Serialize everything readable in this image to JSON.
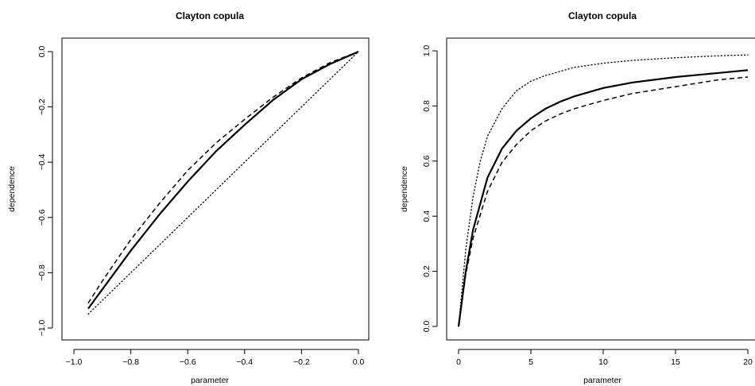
{
  "chart_data": [
    {
      "type": "line",
      "title": "Clayton copula",
      "xlabel": "parameter",
      "ylabel": "dependence",
      "xlim": [
        -1.0,
        0.0
      ],
      "ylim": [
        -1.0,
        0.0
      ],
      "xticks": [
        -1.0,
        -0.8,
        -0.6,
        -0.4,
        -0.2,
        0.0
      ],
      "xtick_labels": [
        "−1.0",
        "−0.8",
        "−0.6",
        "−0.4",
        "−0.2",
        "0.0"
      ],
      "yticks": [
        -1.0,
        -0.8,
        -0.6,
        -0.4,
        -0.2,
        0.0
      ],
      "ytick_labels": [
        "−1.0",
        "−0.8",
        "−0.6",
        "−0.4",
        "−0.2",
        "0.0"
      ],
      "series": [
        {
          "style": "solid",
          "x": [
            -0.95,
            -0.9,
            -0.8,
            -0.7,
            -0.6,
            -0.5,
            -0.4,
            -0.3,
            -0.2,
            -0.1,
            0.0
          ],
          "y": [
            -0.93,
            -0.86,
            -0.72,
            -0.59,
            -0.47,
            -0.36,
            -0.265,
            -0.175,
            -0.1,
            -0.045,
            0.0
          ]
        },
        {
          "style": "dashed",
          "x": [
            -0.95,
            -0.9,
            -0.8,
            -0.7,
            -0.6,
            -0.5,
            -0.4,
            -0.3,
            -0.2,
            -0.1,
            0.0
          ],
          "y": [
            -0.91,
            -0.83,
            -0.68,
            -0.55,
            -0.43,
            -0.33,
            -0.245,
            -0.165,
            -0.095,
            -0.04,
            0.0
          ]
        },
        {
          "style": "dotted",
          "x": [
            -0.95,
            -0.9,
            -0.8,
            -0.7,
            -0.6,
            -0.5,
            -0.4,
            -0.3,
            -0.2,
            -0.1,
            0.0
          ],
          "y": [
            -0.95,
            -0.9,
            -0.8,
            -0.7,
            -0.6,
            -0.5,
            -0.4,
            -0.3,
            -0.2,
            -0.1,
            0.0
          ]
        }
      ]
    },
    {
      "type": "line",
      "title": "Clayton copula",
      "xlabel": "parameter",
      "ylabel": "dependence",
      "xlim": [
        0,
        20
      ],
      "ylim": [
        0.0,
        1.0
      ],
      "xticks": [
        0,
        5,
        10,
        15,
        20
      ],
      "xtick_labels": [
        "0",
        "5",
        "10",
        "15",
        "20"
      ],
      "yticks": [
        0.0,
        0.2,
        0.4,
        0.6,
        0.8,
        1.0
      ],
      "ytick_labels": [
        "0.0",
        "0.2",
        "0.4",
        "0.6",
        "0.8",
        "1.0"
      ],
      "series": [
        {
          "style": "solid",
          "x": [
            0,
            0.5,
            1,
            2,
            3,
            4,
            5,
            6,
            7,
            8,
            10,
            12,
            15,
            18,
            20
          ],
          "y": [
            0,
            0.2,
            0.35,
            0.54,
            0.645,
            0.71,
            0.755,
            0.79,
            0.815,
            0.835,
            0.865,
            0.885,
            0.905,
            0.92,
            0.93
          ]
        },
        {
          "style": "dashed",
          "x": [
            0,
            0.5,
            1,
            2,
            3,
            4,
            5,
            6,
            7,
            8,
            10,
            12,
            15,
            18,
            20
          ],
          "y": [
            0,
            0.19,
            0.32,
            0.49,
            0.595,
            0.66,
            0.71,
            0.745,
            0.77,
            0.79,
            0.82,
            0.845,
            0.87,
            0.895,
            0.905
          ]
        },
        {
          "style": "dotted",
          "x": [
            0,
            0.5,
            1,
            1.5,
            2,
            3,
            4,
            5,
            6,
            8,
            10,
            12,
            15,
            18,
            20
          ],
          "y": [
            0,
            0.28,
            0.47,
            0.6,
            0.69,
            0.79,
            0.855,
            0.89,
            0.91,
            0.94,
            0.955,
            0.965,
            0.975,
            0.982,
            0.985
          ]
        }
      ]
    }
  ]
}
